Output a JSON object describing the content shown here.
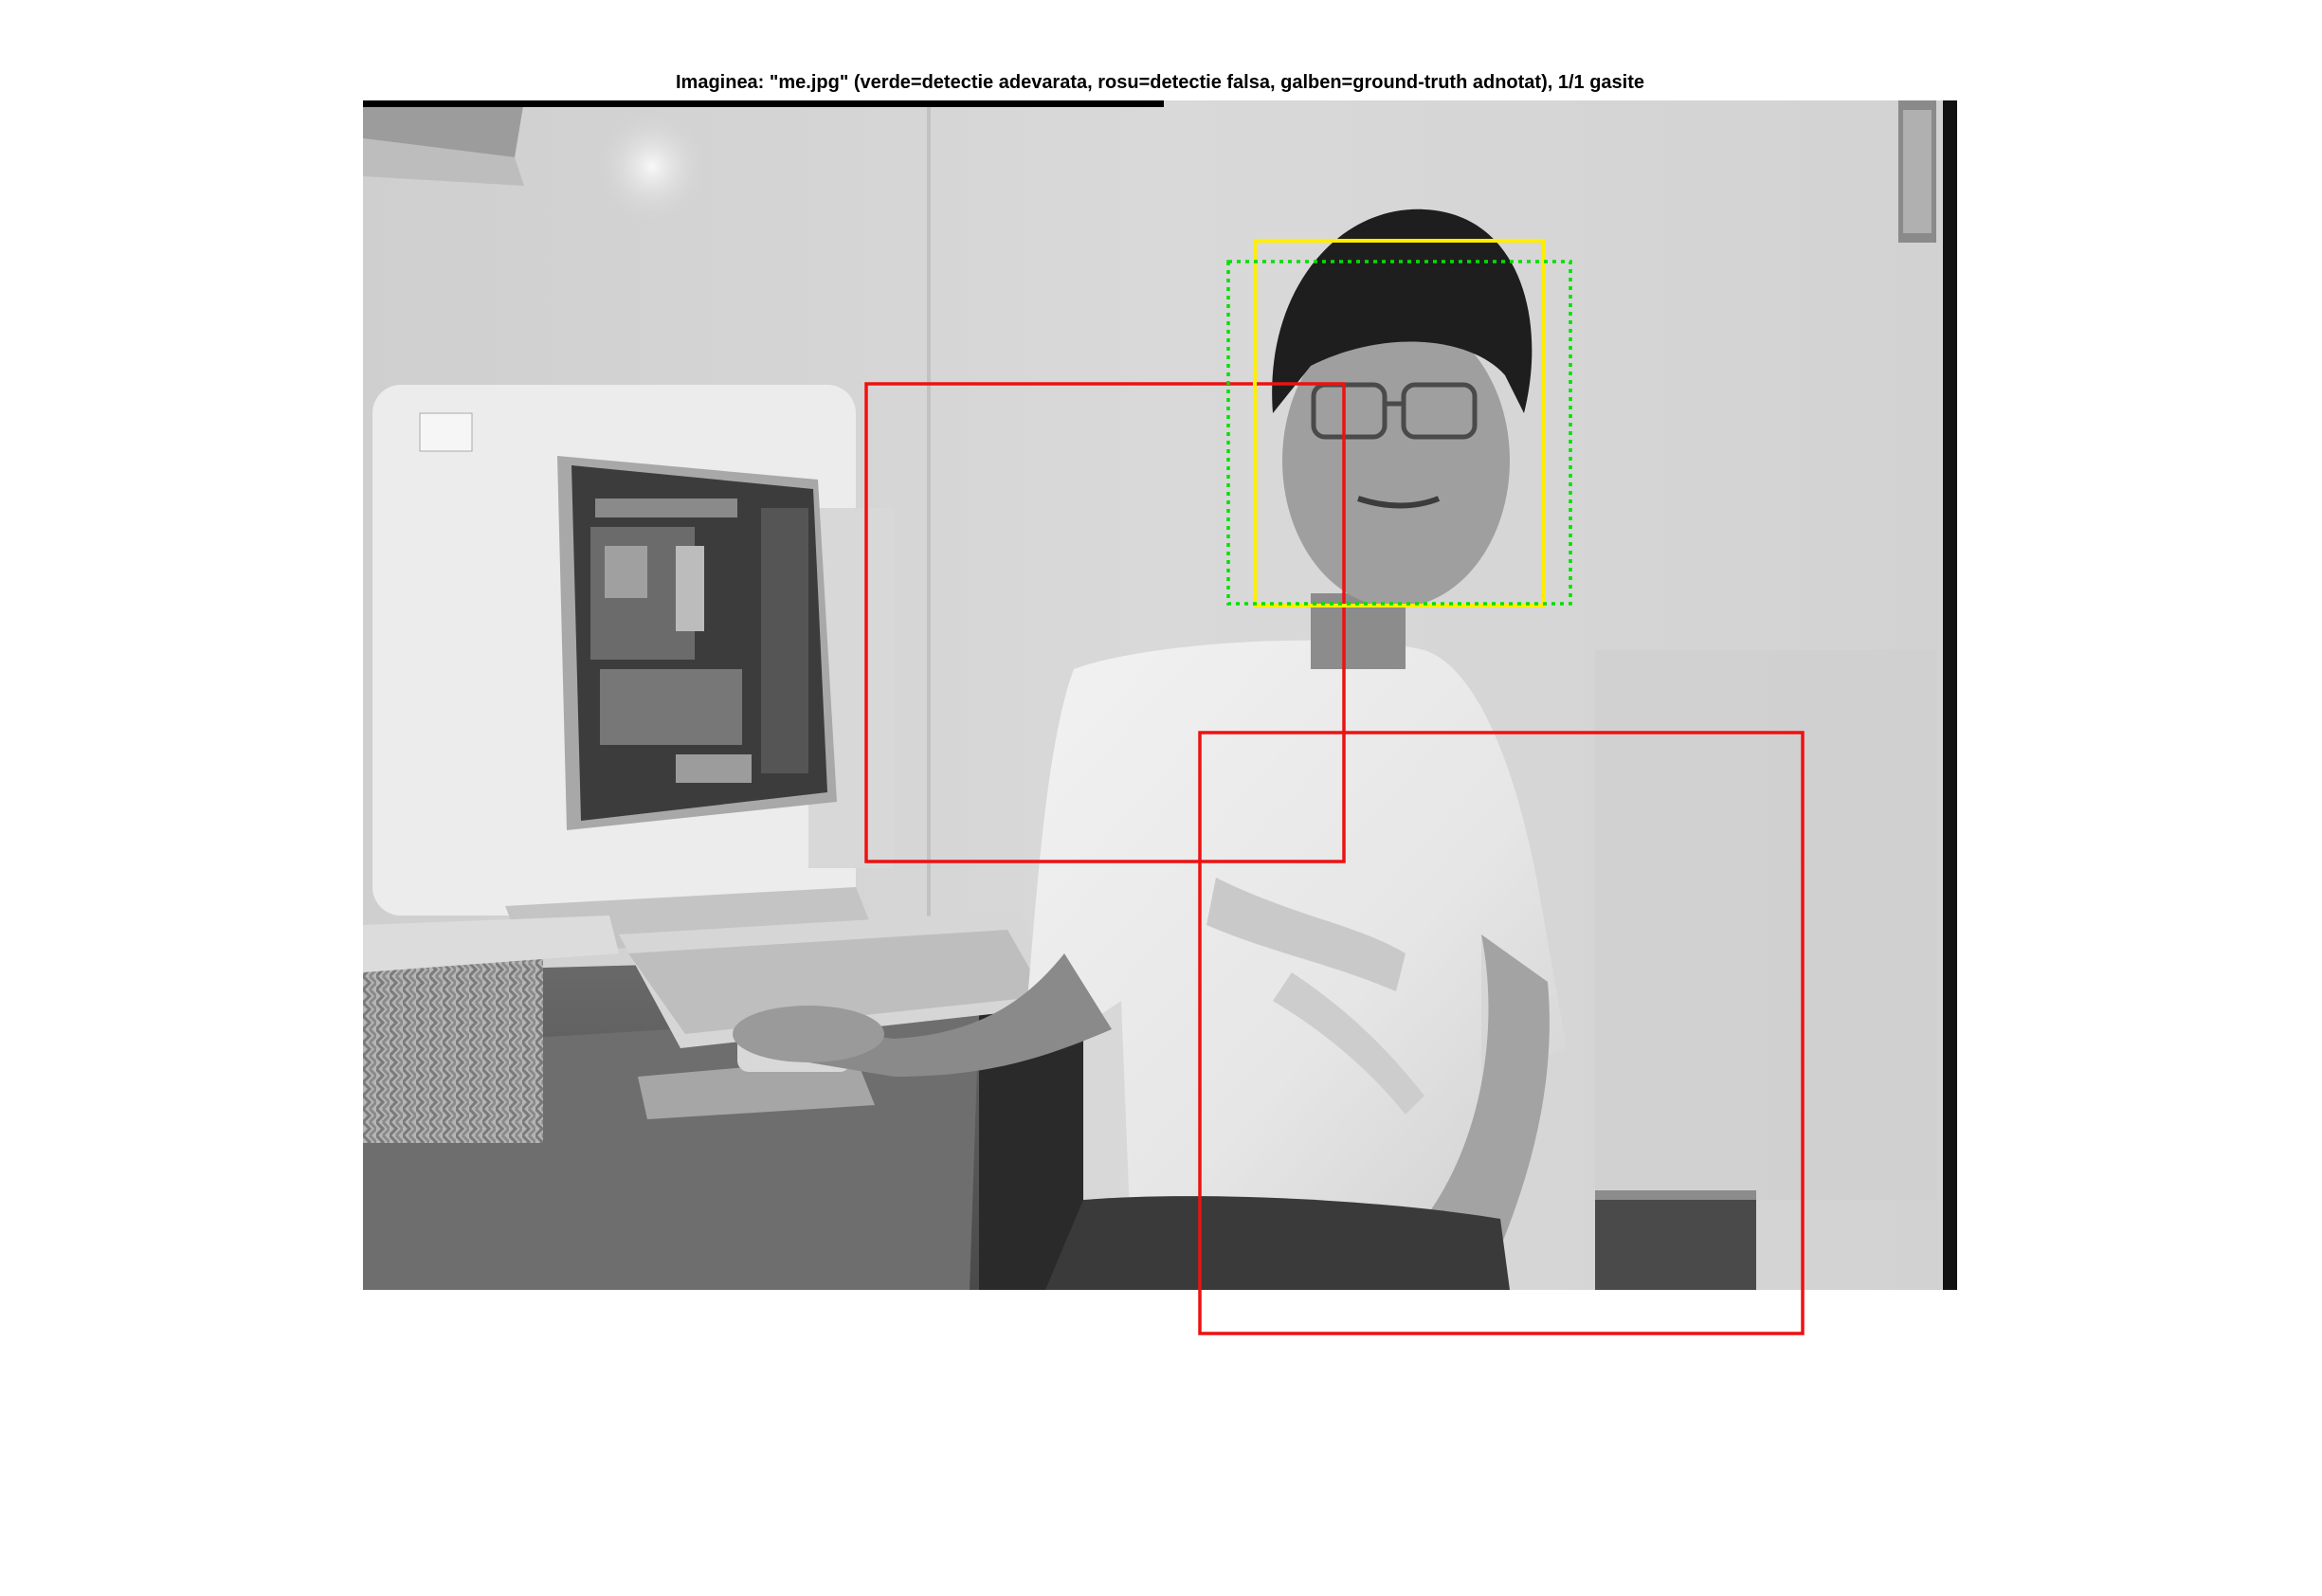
{
  "figure": {
    "title": "Imaginea: \"me.jpg\" (verde=detectie adevarata, rosu=detectie falsa, galben=ground-truth adnotat), 1/1 gasite"
  },
  "colors": {
    "true_detection": "#00e000",
    "false_detection": "#ee1111",
    "ground_truth": "#ffee00",
    "background": "#ffffff"
  },
  "photo": {
    "subject": "grayscale office photo: man in white t-shirt seated next to a CRT computer monitor and keyboard on a desk"
  }
}
